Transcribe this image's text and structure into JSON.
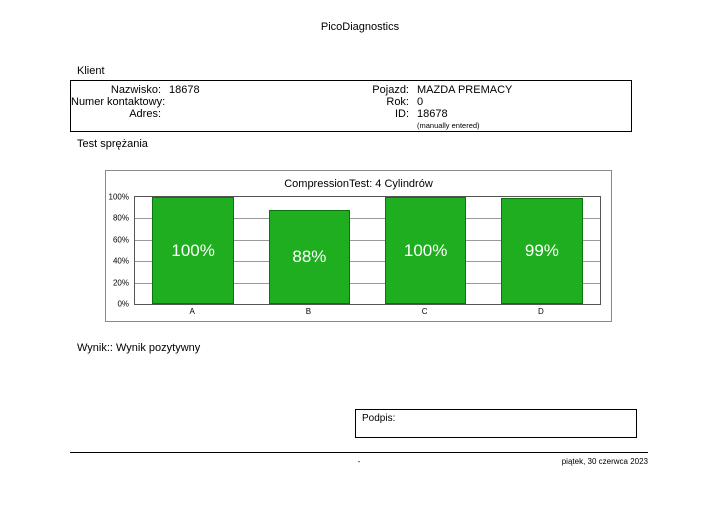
{
  "header": {
    "title": "PicoDiagnostics"
  },
  "client": {
    "section_label": "Klient",
    "fields_left": [
      {
        "label": "Nazwisko:",
        "value": "18678"
      },
      {
        "label": "Numer kontaktowy:",
        "value": ""
      },
      {
        "label": "Adres:",
        "value": ""
      }
    ],
    "fields_right": [
      {
        "label": "Pojazd:",
        "value": "MAZDA PREMACY"
      },
      {
        "label": "Rok:",
        "value": "0"
      },
      {
        "label": "ID:",
        "value": "18678",
        "note": "(manually entered)"
      }
    ]
  },
  "test": {
    "section_label": "Test sprężania"
  },
  "chart_data": {
    "type": "bar",
    "title": "CompressionTest: 4 Cylindrów",
    "categories": [
      "A",
      "B",
      "C",
      "D"
    ],
    "values": [
      100,
      88,
      100,
      99
    ],
    "value_labels": [
      "100%",
      "88%",
      "100%",
      "99%"
    ],
    "y_ticks": [
      "100%",
      "80%",
      "60%",
      "40%",
      "20%",
      "0%"
    ],
    "ylim": [
      0,
      100
    ],
    "xlabel": "",
    "ylabel": "",
    "grid": true,
    "legend": "none",
    "bar_color": "#1fae1f",
    "bar_border_color": "#0c720c"
  },
  "result": {
    "text": "Wynik:: Wynik pozytywny"
  },
  "signature": {
    "label": "Podpis:"
  },
  "footer": {
    "center": "-",
    "right": "piątek, 30 czerwca 2023"
  }
}
